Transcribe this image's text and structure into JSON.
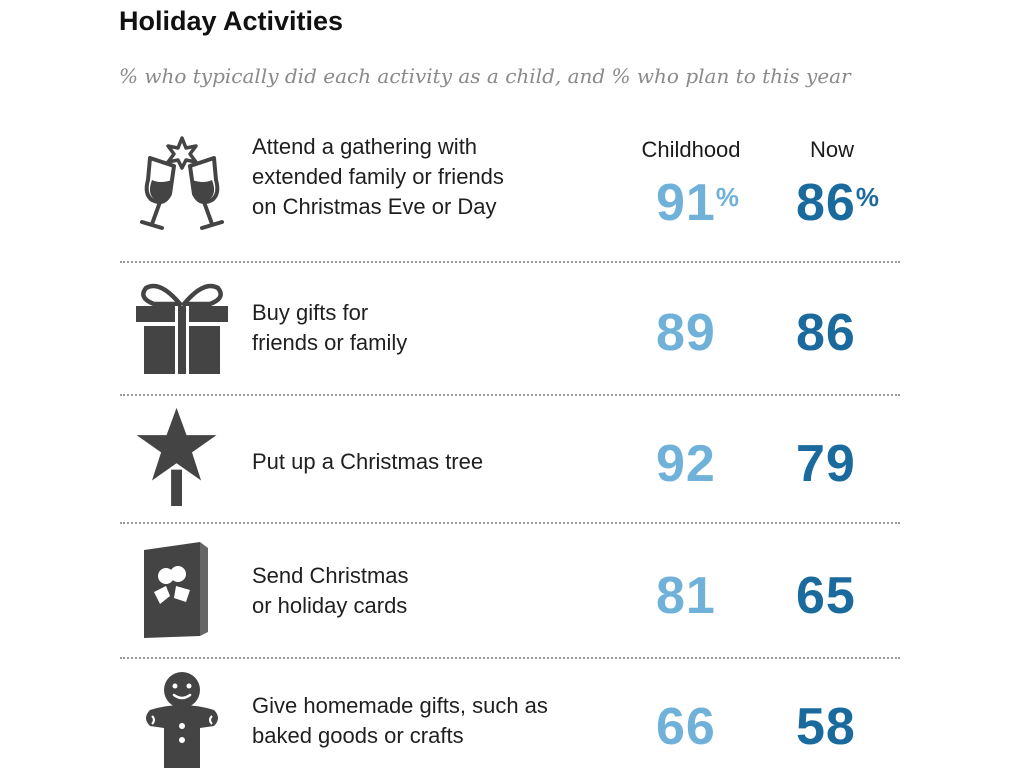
{
  "chart_data": {
    "type": "table",
    "title": "Holiday Activities",
    "subtitle": "% who typically did each activity as a child, and % who plan to this year",
    "columns": [
      "Childhood",
      "Now"
    ],
    "unit_symbol": "%",
    "colors": {
      "childhood": "#6fb1d8",
      "now": "#1b6a9d",
      "icon": "#444444"
    },
    "rows": [
      {
        "label": "Attend a gathering with\nextended family or friends\non Christmas Eve or Day",
        "icon": "champagne-toast-icon",
        "childhood": "91",
        "now": "86"
      },
      {
        "label": "Buy gifts for\nfriends or family",
        "icon": "gift-box-icon",
        "childhood": "89",
        "now": "86"
      },
      {
        "label": "Put up a Christmas tree",
        "icon": "star-tree-topper-icon",
        "childhood": "92",
        "now": "79"
      },
      {
        "label": "Send Christmas\nor holiday cards",
        "icon": "holly-card-icon",
        "childhood": "81",
        "now": "65"
      },
      {
        "label": "Give homemade gifts, such as\nbaked goods or crafts",
        "icon": "gingerbread-man-icon",
        "childhood": "66",
        "now": "58"
      }
    ]
  }
}
